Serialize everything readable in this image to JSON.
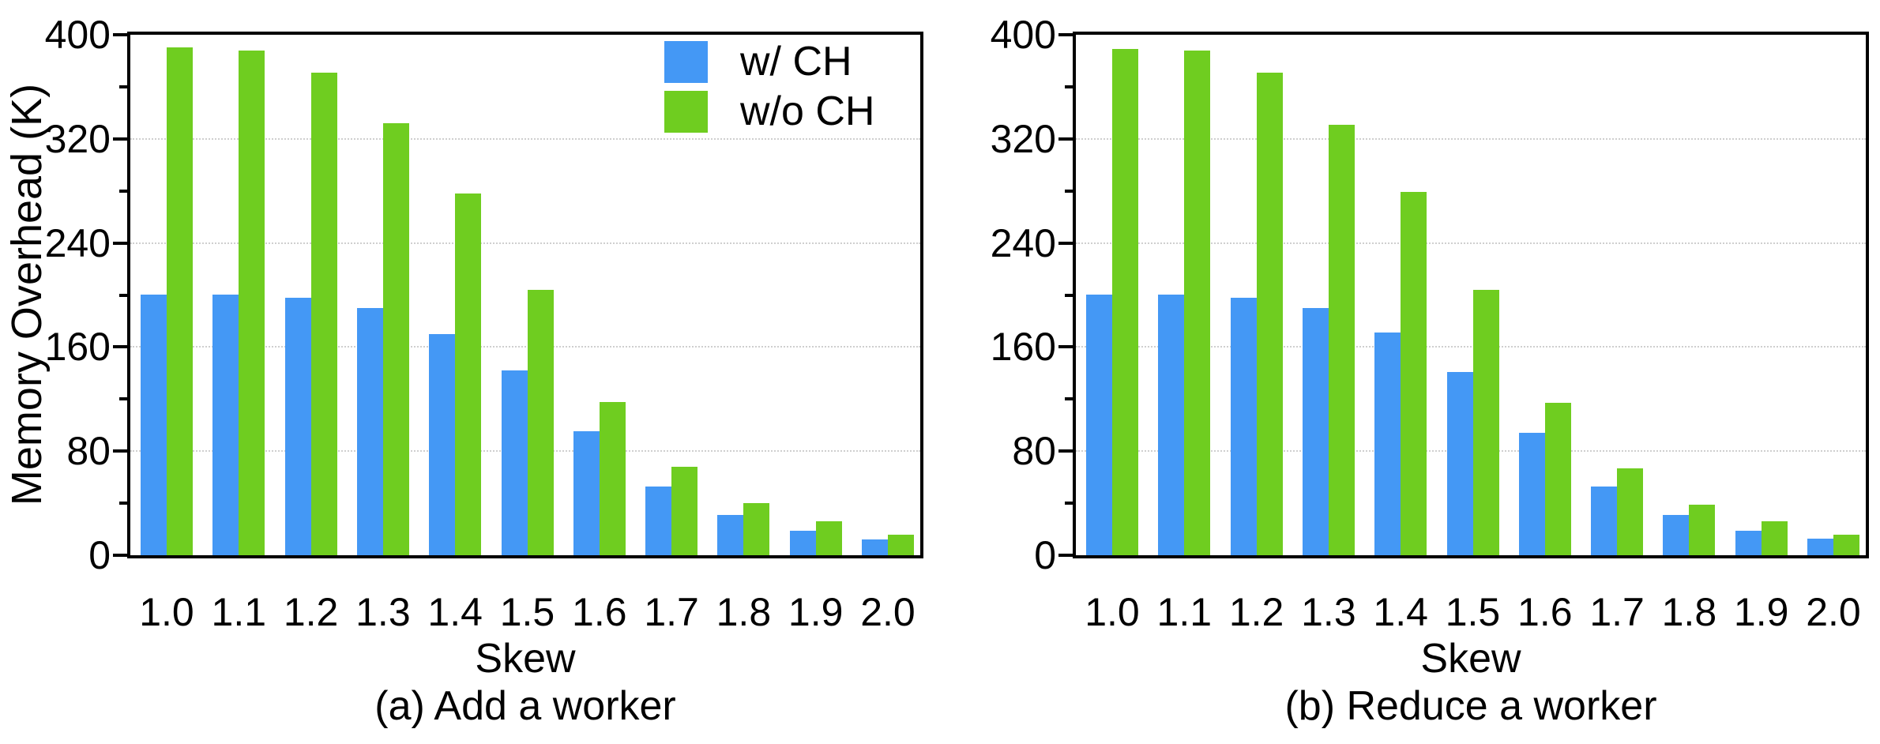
{
  "figure_background": "#ffffff",
  "colors": {
    "with_ch": "#4498f5",
    "without_ch": "#6fcd20",
    "axis": "#000000",
    "gridline": "#cfcfcf"
  },
  "chart_data": [
    {
      "type": "bar",
      "title": "(a) Add a worker",
      "xlabel": "Skew",
      "ylabel": "Memory Overhead (K)",
      "categories": [
        "1.0",
        "1.1",
        "1.2",
        "1.3",
        "1.4",
        "1.5",
        "1.6",
        "1.7",
        "1.8",
        "1.9",
        "2.0"
      ],
      "series": [
        {
          "name": "w/ CH",
          "color": "#4498f5",
          "values": [
            200,
            200,
            198,
            190,
            170,
            142,
            95,
            53,
            31,
            19,
            12
          ]
        },
        {
          "name": "w/o CH",
          "color": "#6fcd20",
          "values": [
            390,
            388,
            371,
            332,
            278,
            204,
            118,
            68,
            40,
            26,
            16
          ]
        }
      ],
      "ylim": [
        0,
        400
      ],
      "yticks": [
        0,
        80,
        160,
        240,
        320,
        400
      ],
      "minor_yticks": [
        40,
        120,
        200,
        280,
        360
      ],
      "grid": true,
      "grid_style": "dotted horizontal lines at major ticks",
      "legend_position": "top-right-inside",
      "show_ylabel": true,
      "show_legend": true
    },
    {
      "type": "bar",
      "title": "(b) Reduce a worker",
      "xlabel": "Skew",
      "ylabel": "Memory Overhead (K)",
      "categories": [
        "1.0",
        "1.1",
        "1.2",
        "1.3",
        "1.4",
        "1.5",
        "1.6",
        "1.7",
        "1.8",
        "1.9",
        "2.0"
      ],
      "series": [
        {
          "name": "w/ CH",
          "color": "#4498f5",
          "values": [
            200,
            200,
            198,
            190,
            171,
            141,
            94,
            53,
            31,
            19,
            13
          ]
        },
        {
          "name": "w/o CH",
          "color": "#6fcd20",
          "values": [
            389,
            388,
            371,
            331,
            279,
            204,
            117,
            67,
            39,
            26,
            16
          ]
        }
      ],
      "ylim": [
        0,
        400
      ],
      "yticks": [
        0,
        80,
        160,
        240,
        320,
        400
      ],
      "minor_yticks": [
        40,
        120,
        200,
        280,
        360
      ],
      "grid": true,
      "grid_style": "dotted horizontal lines at major ticks",
      "legend_position": "none",
      "show_ylabel": false,
      "show_legend": false
    }
  ]
}
